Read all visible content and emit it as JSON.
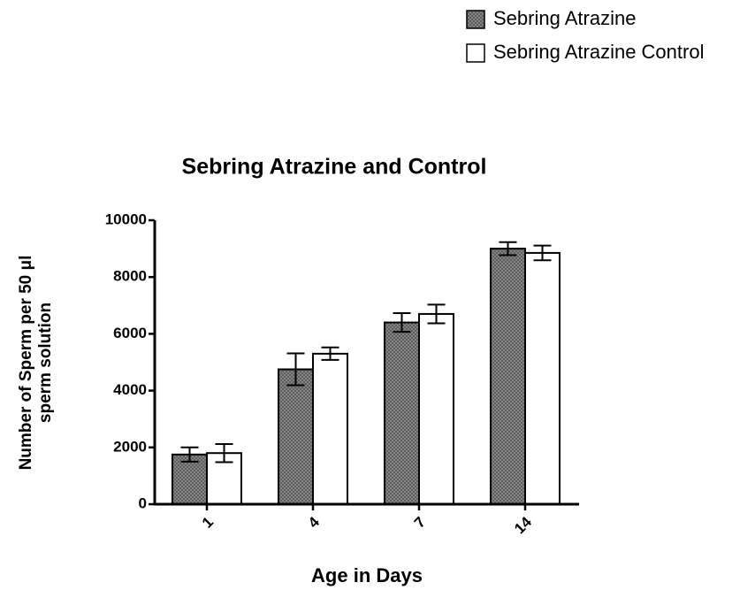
{
  "chart_data": {
    "type": "bar",
    "title": "Sebring Atrazine and  Control",
    "xlabel": "Age in  Days",
    "ylabel": [
      "Number of Sperm per 50 μl",
      "sperm solution"
    ],
    "categories": [
      "1",
      "4",
      "7",
      "14"
    ],
    "series": [
      {
        "name": "Sebring Atrazine",
        "color": "#8c8c8c",
        "pattern": "crosshatch",
        "values": [
          1750,
          4750,
          6400,
          9000
        ],
        "errors": [
          250,
          560,
          330,
          230
        ]
      },
      {
        "name": "Sebring Atrazine Control",
        "color": "#ffffff",
        "values": [
          1800,
          5300,
          6700,
          8850
        ],
        "errors": [
          320,
          220,
          330,
          260
        ]
      }
    ],
    "ylim": [
      0,
      10000
    ],
    "yticks": [
      0,
      2000,
      4000,
      6000,
      8000,
      10000
    ],
    "legend": "top-right",
    "grid": false
  }
}
